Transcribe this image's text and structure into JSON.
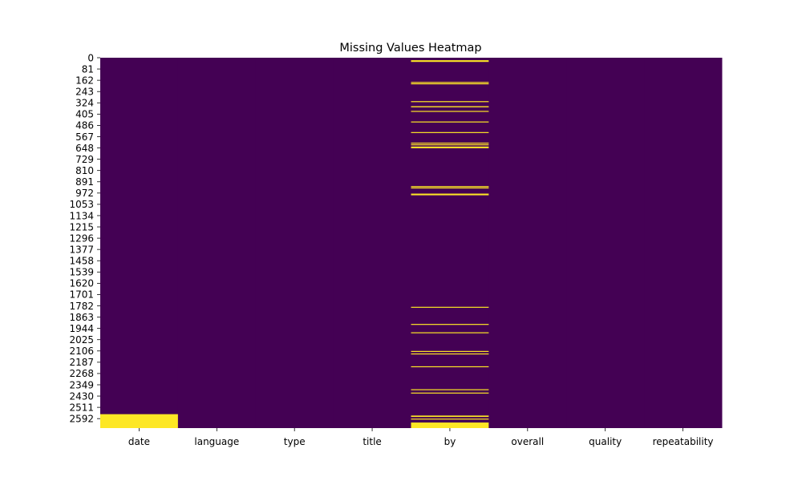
{
  "chart_data": {
    "type": "heatmap",
    "title": "Missing Values Heatmap",
    "xlabel": "",
    "ylabel": "",
    "columns": [
      "date",
      "language",
      "type",
      "title",
      "by",
      "overall",
      "quality",
      "repeatability"
    ],
    "y_tick_labels": [
      "0",
      "81",
      "162",
      "243",
      "324",
      "405",
      "486",
      "567",
      "648",
      "729",
      "810",
      "891",
      "972",
      "1053",
      "1134",
      "1215",
      "1296",
      "1377",
      "1458",
      "1539",
      "1620",
      "1701",
      "1782",
      "1863",
      "1944",
      "2025",
      "2106",
      "2187",
      "2268",
      "2349",
      "2430",
      "2511",
      "2592"
    ],
    "row_range": [
      0,
      2660
    ],
    "colors": {
      "present": "#440154",
      "missing": "#fde725"
    },
    "missing_rows": {
      "date": [
        [
          2560,
          2660
        ]
      ],
      "language": [],
      "type": [],
      "title": [],
      "by": [
        [
          18,
          30
        ],
        [
          174,
          176
        ],
        [
          184,
          186
        ],
        [
          312,
          314
        ],
        [
          348,
          356
        ],
        [
          382,
          384
        ],
        [
          458,
          460
        ],
        [
          534,
          536
        ],
        [
          610,
          614
        ],
        [
          622,
          626
        ],
        [
          638,
          650
        ],
        [
          922,
          926
        ],
        [
          932,
          934
        ],
        [
          976,
          988
        ],
        [
          1789,
          1791
        ],
        [
          1912,
          1914
        ],
        [
          1972,
          1974
        ],
        [
          2106,
          2108
        ],
        [
          2124,
          2126
        ],
        [
          2216,
          2218
        ],
        [
          2381,
          2383
        ],
        [
          2405,
          2407
        ],
        [
          2570,
          2580
        ],
        [
          2592,
          2594
        ],
        [
          2620,
          2660
        ]
      ],
      "overall": [],
      "quality": [],
      "repeatability": []
    }
  }
}
